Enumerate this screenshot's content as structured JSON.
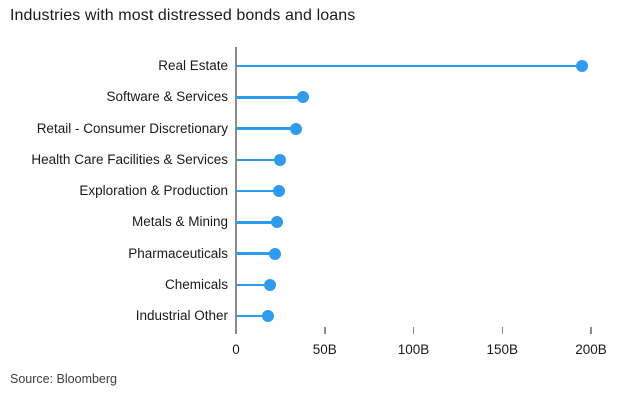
{
  "title": "Industries with most distressed bonds and loans",
  "source": "Source: Bloomberg",
  "colors": {
    "accent": "#2d9cf0",
    "axis": "#8c8c8c",
    "text": "#1a1a1a",
    "source_text": "#3d3d3d",
    "background": "#ffffff"
  },
  "chart_data": {
    "type": "bar",
    "variant": "horizontal-lollipop",
    "title": "Industries with most distressed bonds and loans",
    "categories": [
      "Real Estate",
      "Software & Services",
      "Retail - Consumer Discretionary",
      "Health Care Facilities & Services",
      "Exploration & Production",
      "Metals & Mining",
      "Pharmaceuticals",
      "Chemicals",
      "Industrial Other"
    ],
    "values": [
      195,
      38,
      34,
      25,
      24,
      23,
      22,
      19,
      18
    ],
    "unit": "B",
    "xlabel": "",
    "ylabel": "",
    "xlim": [
      0,
      200
    ],
    "xticks": [
      {
        "value": 0,
        "label": "0"
      },
      {
        "value": 50,
        "label": "50B"
      },
      {
        "value": 100,
        "label": "100B"
      },
      {
        "value": 150,
        "label": "150B"
      },
      {
        "value": 200,
        "label": "200B"
      }
    ],
    "grid": false,
    "legend": false
  }
}
